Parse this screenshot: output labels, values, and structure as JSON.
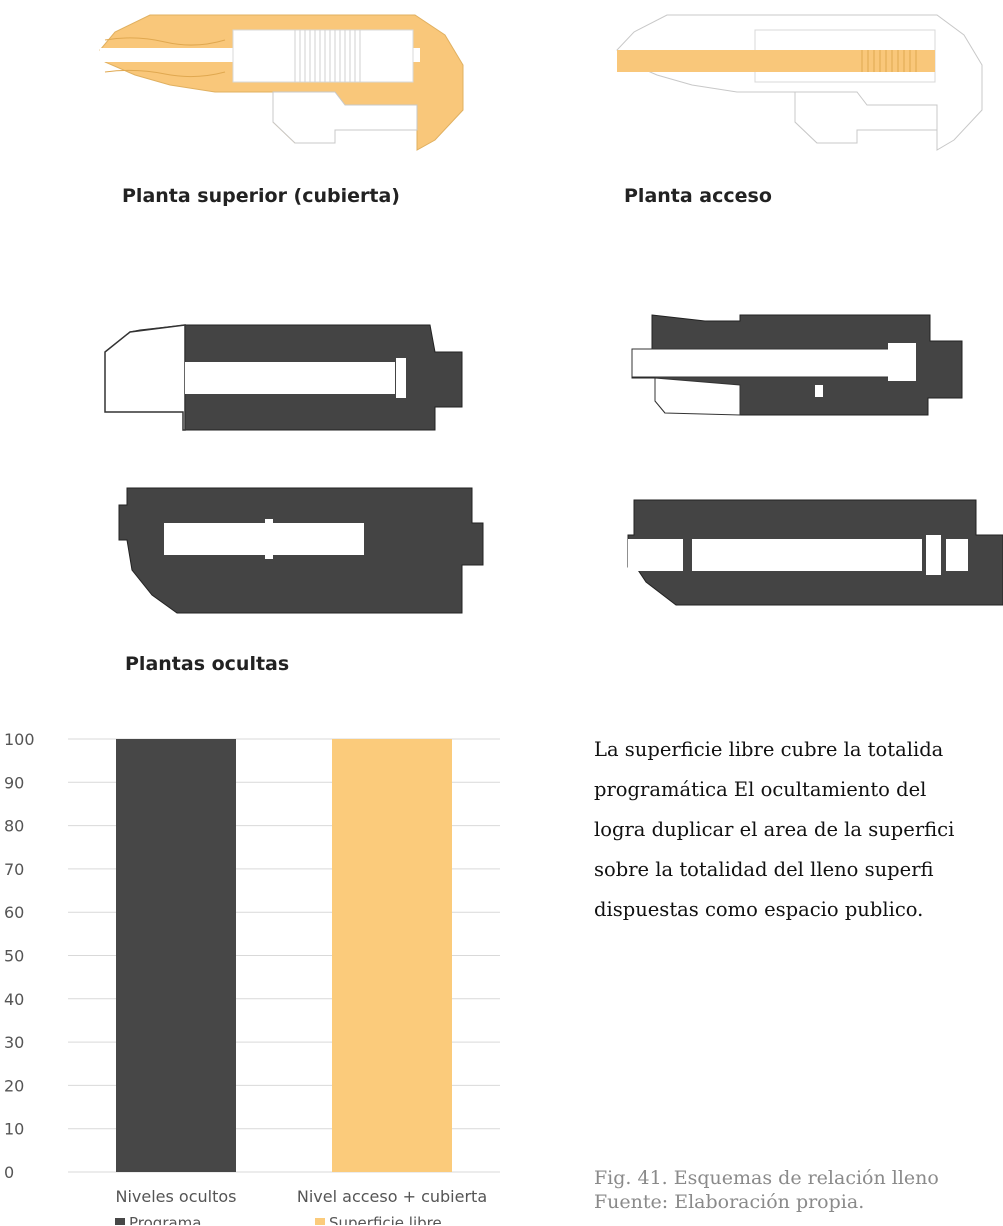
{
  "captions": {
    "top_left": "Planta superior (cubierta)",
    "top_right": "Planta acceso",
    "hidden": "Plantas ocultas"
  },
  "colors": {
    "yellow": "#f9c77a",
    "dark": "#444444",
    "outline": "#c8c8c8"
  },
  "paragraph": {
    "lines": [
      "La superficie libre cubre la totalida",
      "programática El ocultamiento del",
      "logra duplicar el area de la superfici",
      "sobre la totalidad del lleno superfi",
      "dispuestas como espacio publico."
    ]
  },
  "figure_caption": {
    "line1": "Fig. 41. Esquemas de relación lleno",
    "line2": "Fuente: Elaboración propia."
  },
  "chart_data": {
    "type": "bar",
    "categories": [
      "Niveles ocultos",
      "Nivel acceso + cubierta"
    ],
    "series": [
      {
        "name": "Programa",
        "values": [
          100,
          0
        ],
        "color": "#474747"
      },
      {
        "name": "Superficie libre",
        "values": [
          0,
          100
        ],
        "color": "#fbcb7b"
      }
    ],
    "ylim": [
      0,
      100
    ],
    "yticks": [
      "0",
      "10",
      "20",
      "30",
      "40",
      "50",
      "60",
      "70",
      "80",
      "90",
      "100"
    ],
    "grid": true,
    "legend": "bottom",
    "title": "",
    "xlabel": "",
    "ylabel": ""
  }
}
